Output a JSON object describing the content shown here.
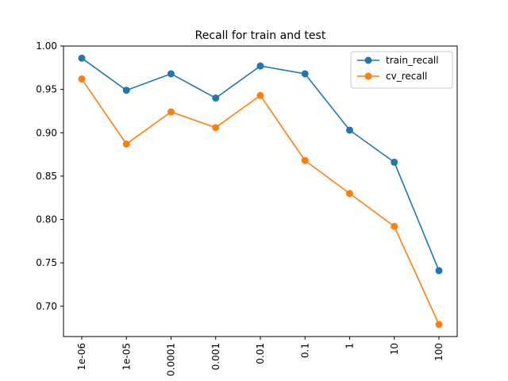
{
  "chart_data": {
    "type": "line",
    "title": "Recall for train and test",
    "xlabel": "",
    "ylabel": "",
    "categories": [
      "1e-06",
      "1e-05",
      "0.0001",
      "0.001",
      "0.01",
      "0.1",
      "1",
      "10",
      "100"
    ],
    "series": [
      {
        "name": "train_recall",
        "color": "#1f77b4",
        "values": [
          0.986,
          0.949,
          0.968,
          0.94,
          0.977,
          0.968,
          0.903,
          0.866,
          0.741
        ]
      },
      {
        "name": "cv_recall",
        "color": "#ff7f0e",
        "values": [
          0.962,
          0.887,
          0.924,
          0.906,
          0.943,
          0.868,
          0.83,
          0.792,
          0.679
        ]
      }
    ],
    "ylim": [
      0.665,
      1.0
    ],
    "yticks": [
      0.7,
      0.75,
      0.8,
      0.85,
      0.9,
      0.95,
      1.0
    ],
    "ytick_labels": [
      "0.70",
      "0.75",
      "0.80",
      "0.85",
      "0.90",
      "0.95",
      "1.00"
    ],
    "grid": false,
    "legend_position": "top-right",
    "marker": "circle"
  }
}
